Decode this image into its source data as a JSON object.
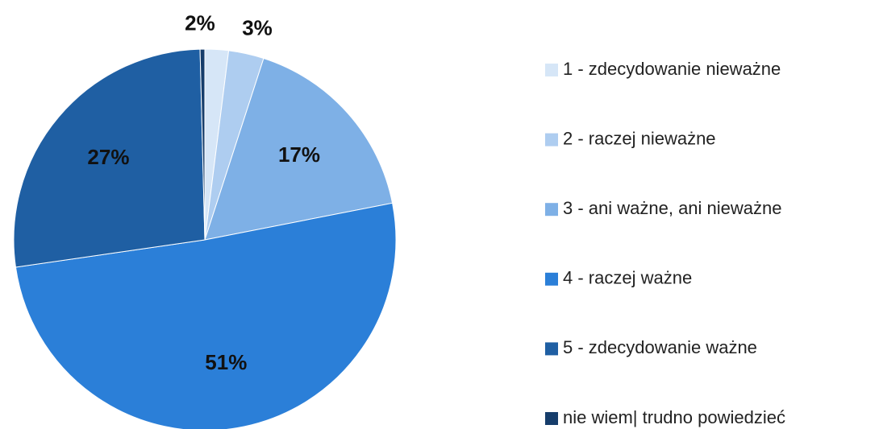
{
  "chart_data": {
    "type": "pie",
    "categories": [
      "1 - zdecydowanie nieważne",
      "2 - raczej nieważne",
      "3 - ani ważne, ani nieważne",
      "4 - raczej ważne",
      "5 - zdecydowanie ważne",
      "nie wiem| trudno powiedzieć"
    ],
    "values": [
      2,
      3,
      17,
      51,
      27,
      0.4
    ],
    "value_labels": [
      "2%",
      "3%",
      "17%",
      "51%",
      "27%",
      null
    ],
    "colors": [
      "#d6e6f7",
      "#aecdf0",
      "#7eb0e6",
      "#2b7fd8",
      "#1f5fa3",
      "#163d6b"
    ],
    "legend": "right"
  }
}
